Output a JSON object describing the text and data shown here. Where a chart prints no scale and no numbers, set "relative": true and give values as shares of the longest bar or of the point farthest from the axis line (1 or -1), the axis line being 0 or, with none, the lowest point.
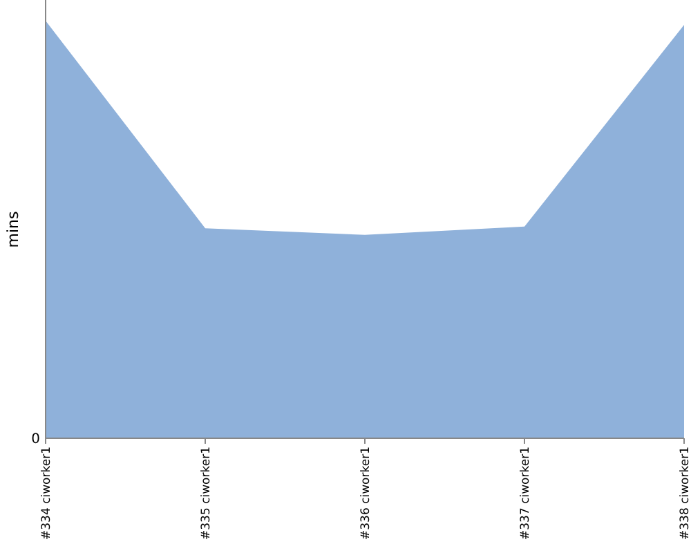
{
  "chart_data": {
    "type": "area",
    "ylabel": "mins",
    "relative": true,
    "categories": [
      "#334 ciworker1",
      "#335 ciworker1",
      "#336 ciworker1",
      "#337 ciworker1",
      "#338 ciworker1"
    ],
    "series": [
      {
        "color": "#8fb1da",
        "values": [
          1,
          0.503,
          0.487,
          0.507,
          0.99
        ]
      }
    ],
    "annotations": [
      "0"
    ]
  }
}
